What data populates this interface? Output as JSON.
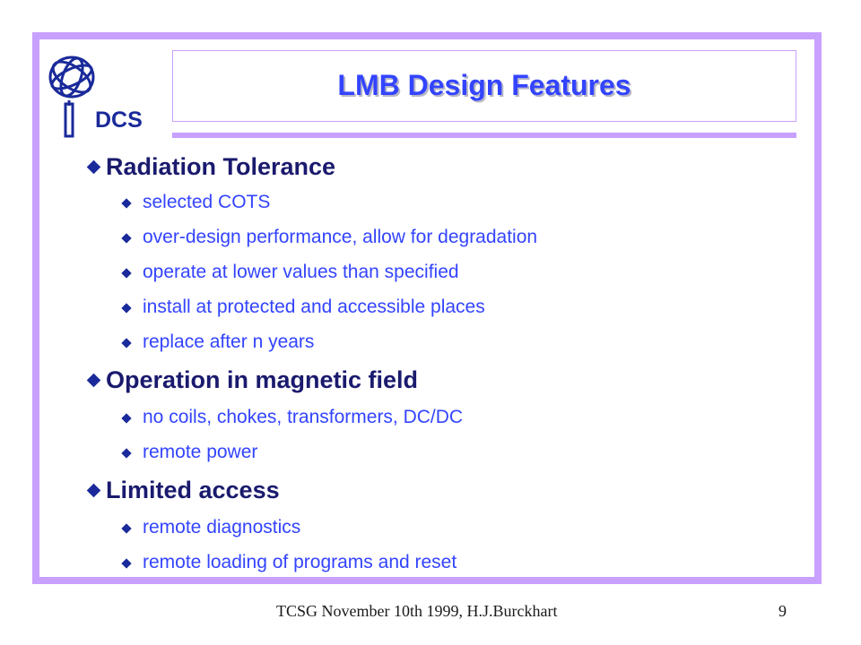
{
  "logo": {
    "text": "DCS",
    "icon": "atlas-globe-icon",
    "color": "#1a2a9a"
  },
  "title": "LMB Design Features",
  "colors": {
    "frame": "#c8a0ff",
    "title": "#3344ff",
    "heading": "#1a1a6e",
    "subitem": "#3344ff",
    "bullet": "#1a2a9a"
  },
  "sections": [
    {
      "heading": "Radiation Tolerance",
      "items": [
        "selected COTS",
        "over-design performance, allow for degradation",
        "operate at lower values than specified",
        "install at protected and accessible places",
        "replace after n years"
      ]
    },
    {
      "heading": "Operation in magnetic field",
      "items": [
        "no coils, chokes, transformers, DC/DC",
        "remote power"
      ]
    },
    {
      "heading": "Limited access",
      "items": [
        "remote diagnostics",
        "remote loading of programs and reset"
      ]
    }
  ],
  "footer": {
    "text": "TCSG November 10th 1999,  H.J.Burckhart",
    "page": "9"
  }
}
